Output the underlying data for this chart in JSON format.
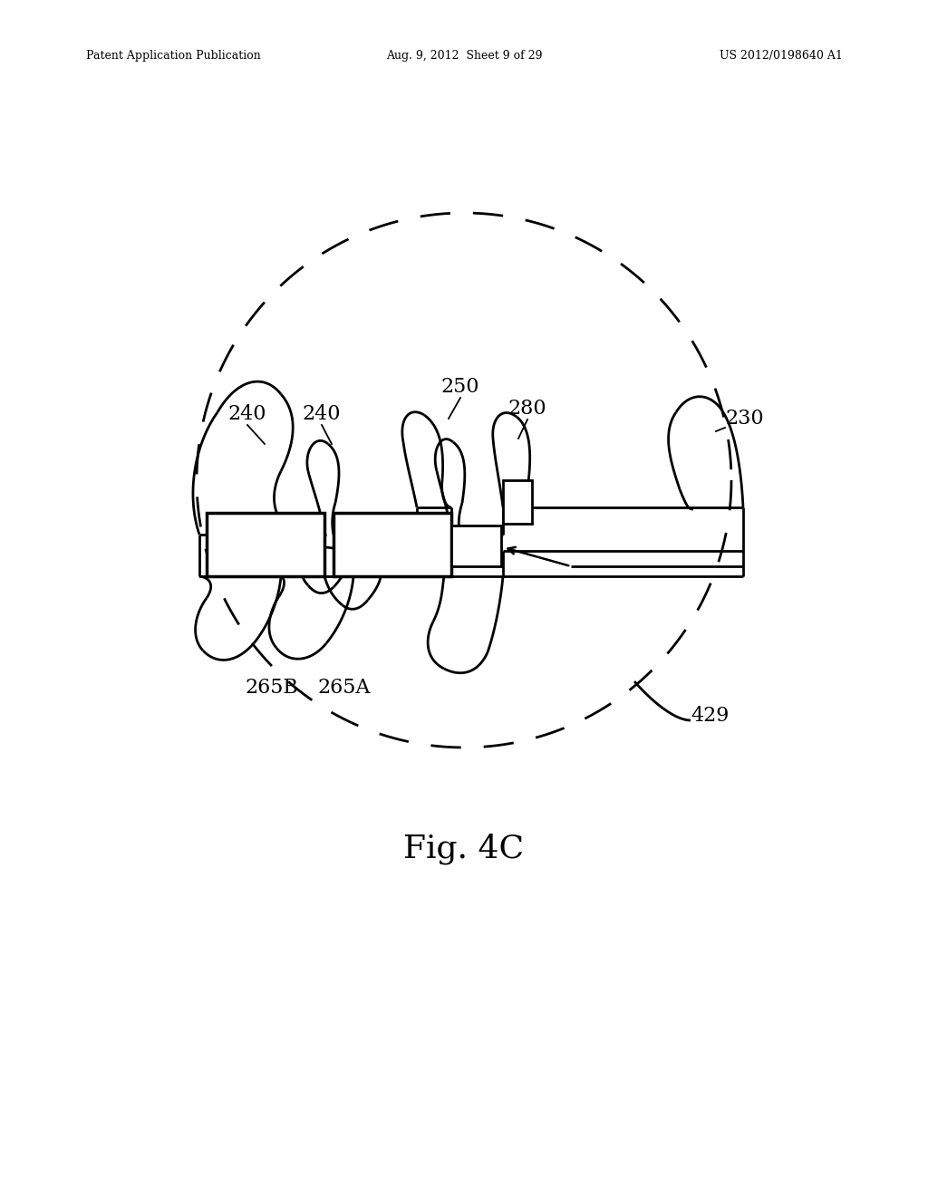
{
  "bg_color": "#ffffff",
  "header_left": "Patent Application Publication",
  "header_mid": "Aug. 9, 2012  Sheet 9 of 29",
  "header_right": "US 2012/0198640 A1",
  "fig_caption": "Fig. 4C",
  "lw": 2.0
}
